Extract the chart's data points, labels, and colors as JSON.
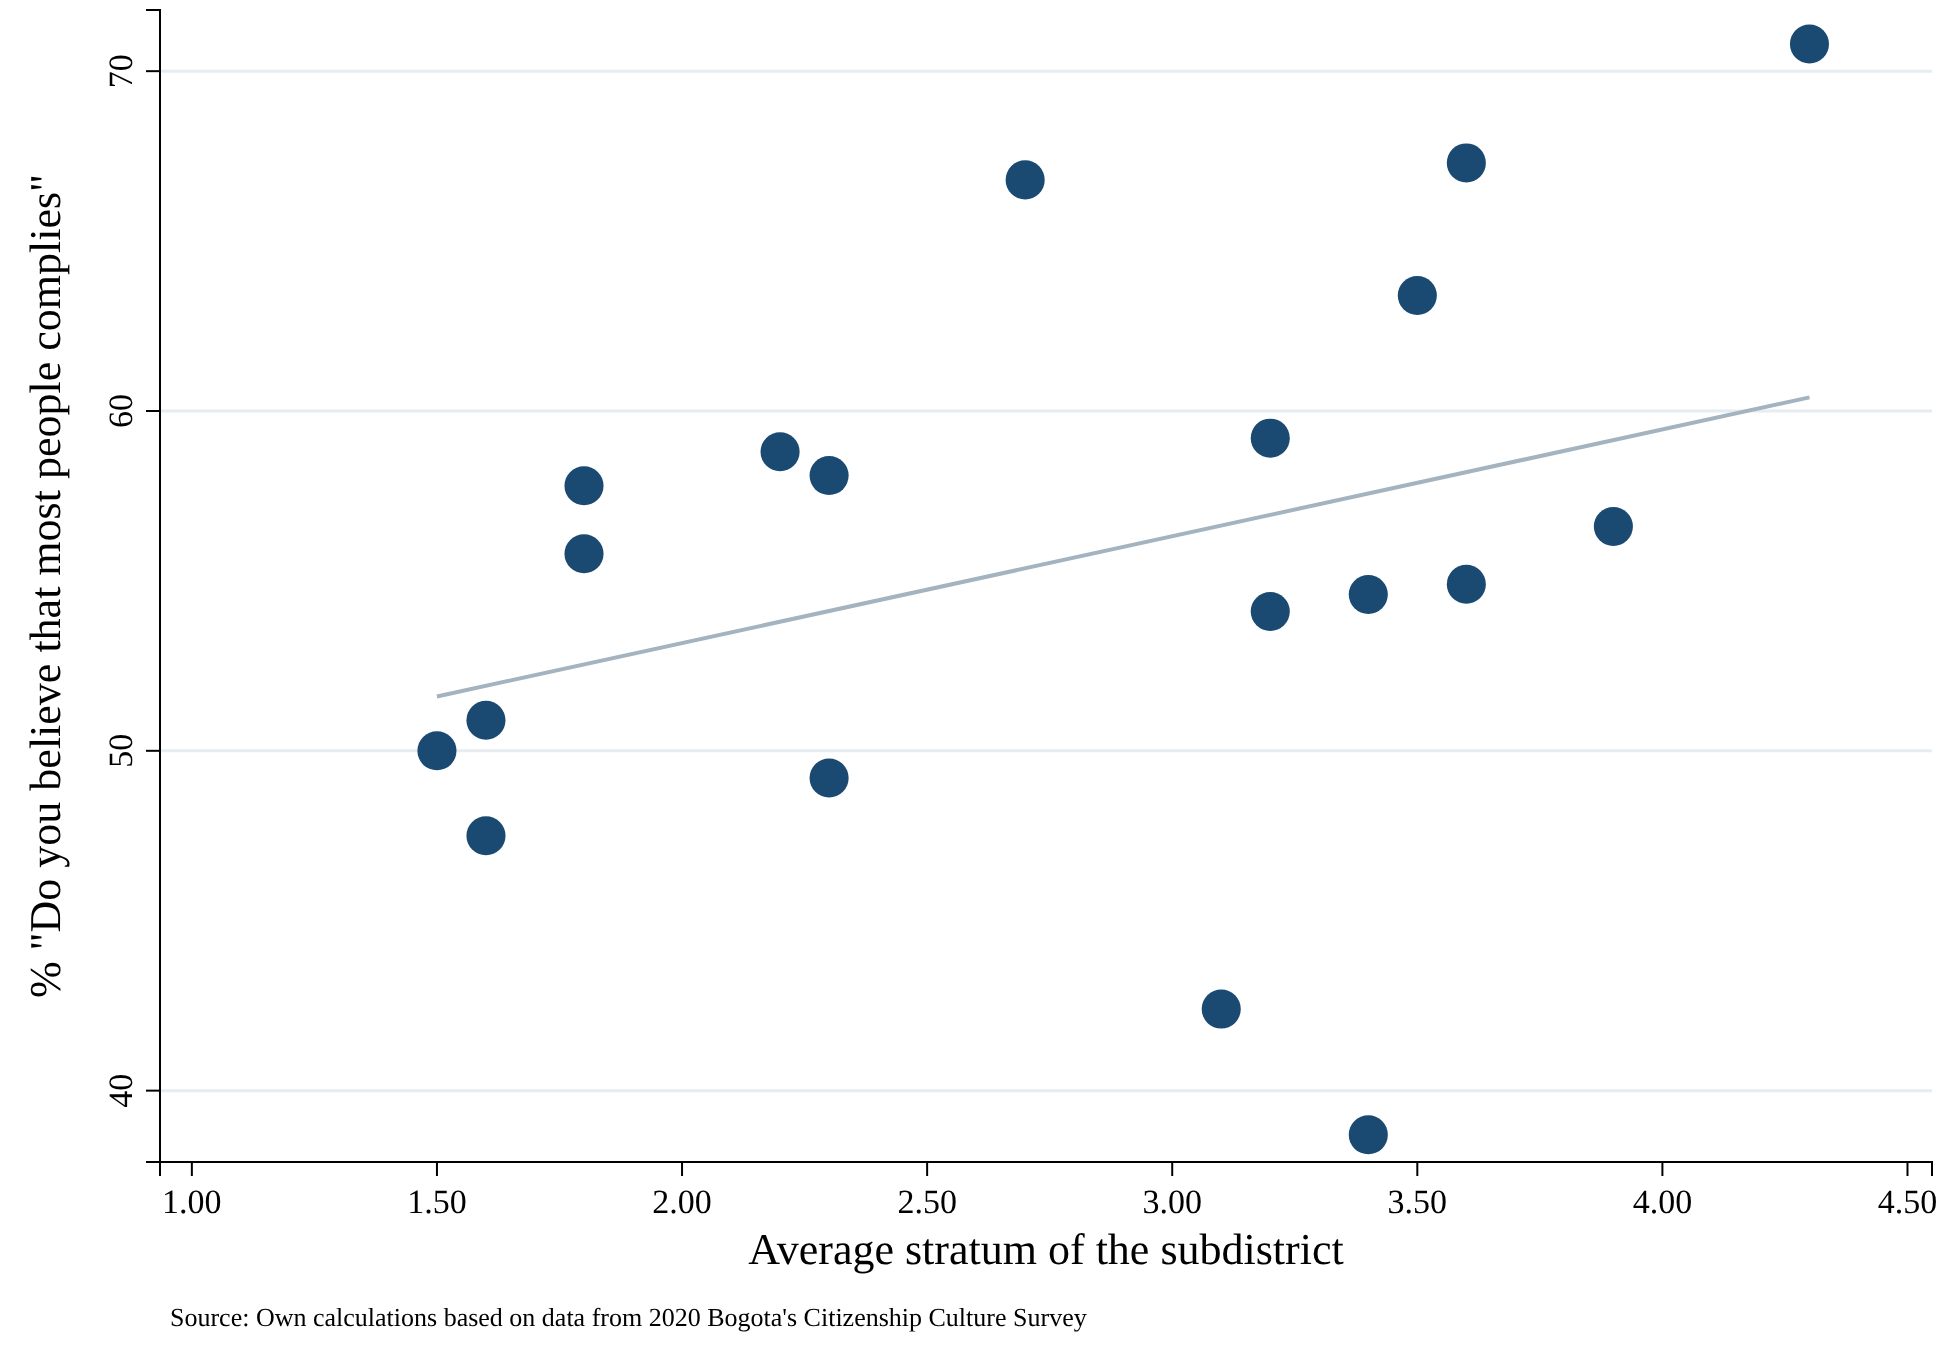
{
  "chart_data": {
    "type": "scatter",
    "xlabel": "Average stratum of the subdistrict",
    "ylabel": "% \"Do you believe that most people complies\"",
    "annotations": [
      "Source: Own calculations based on data from 2020 Bogota's Citizenship Culture Survey"
    ],
    "xlim": [
      0.935,
      4.55
    ],
    "ylim": [
      37.9,
      71.8
    ],
    "xticks": [
      {
        "value": 1,
        "label": "1.00"
      },
      {
        "value": 1.5,
        "label": "1.50"
      },
      {
        "value": 2,
        "label": "2.00"
      },
      {
        "value": 2.5,
        "label": "2.50"
      },
      {
        "value": 3,
        "label": "3.00"
      },
      {
        "value": 3.5,
        "label": "3.50"
      },
      {
        "value": 4,
        "label": "4.00"
      },
      {
        "value": 4.5,
        "label": "4.50"
      }
    ],
    "yticks": [
      40,
      50,
      60,
      70
    ],
    "grid": "y",
    "series": [
      {
        "marker": "circle",
        "color": "#1a4a72",
        "x": [
          1.5,
          1.6,
          1.6,
          1.8,
          1.8,
          2.2,
          2.3,
          2.3,
          2.7,
          3.1,
          3.2,
          3.2,
          3.4,
          3.4,
          3.5,
          3.6,
          3.6,
          3.9,
          4.3
        ],
        "values": [
          50.0,
          50.9,
          47.5,
          57.8,
          55.8,
          58.8,
          58.1,
          49.2,
          66.8,
          42.4,
          59.2,
          54.1,
          54.6,
          38.7,
          63.4,
          67.3,
          54.9,
          56.6,
          70.8
        ]
      },
      {
        "type": "line",
        "color": "#a3b3bf",
        "x": [
          1.5,
          4.3
        ],
        "values": [
          51.6,
          60.4
        ]
      }
    ]
  }
}
